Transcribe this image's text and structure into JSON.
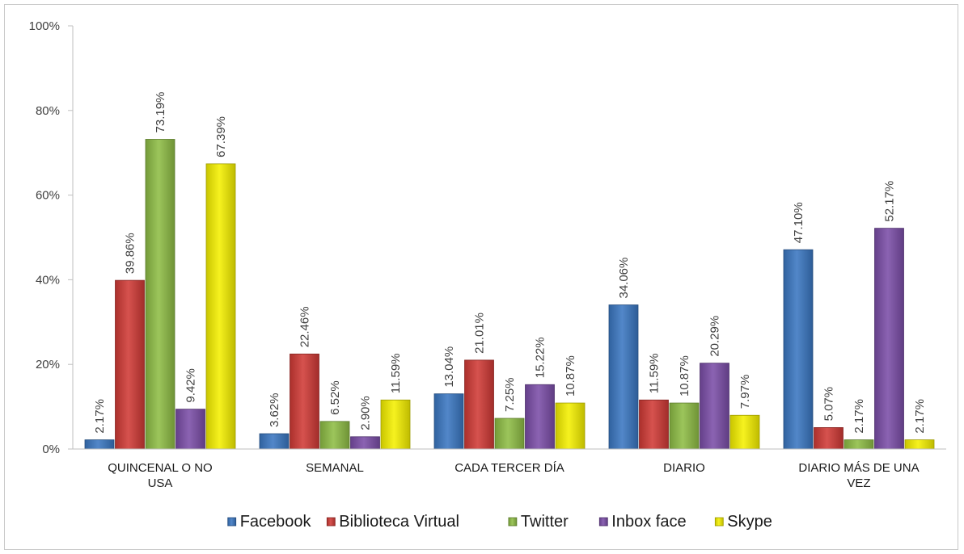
{
  "chart_data": {
    "type": "bar",
    "title": "",
    "xlabel": "",
    "ylabel": "",
    "ylim": [
      0,
      100
    ],
    "y_ticks": [
      "0%",
      "20%",
      "40%",
      "60%",
      "80%",
      "100%"
    ],
    "y_tick_values": [
      0,
      20,
      40,
      60,
      80,
      100
    ],
    "grid": false,
    "legend_position": "bottom",
    "categories": [
      [
        "QUINCENAL O NO",
        "USA"
      ],
      [
        "SEMANAL"
      ],
      [
        "CADA TERCER DÍA"
      ],
      [
        "DIARIO"
      ],
      [
        "DIARIO MÁS DE UNA",
        "VEZ"
      ]
    ],
    "series": [
      {
        "name": "Facebook",
        "color": "#3a77c2",
        "values": [
          2.17,
          3.62,
          13.04,
          34.06,
          47.1
        ],
        "labels": [
          "2.17%",
          "3.62%",
          "13.04%",
          "34.06%",
          "47.10%"
        ]
      },
      {
        "name": "Biblioteca Virtual",
        "color": "#d03a36",
        "values": [
          39.86,
          22.46,
          21.01,
          11.59,
          5.07
        ],
        "labels": [
          "39.86%",
          "22.46%",
          "21.01%",
          "11.59%",
          "5.07%"
        ]
      },
      {
        "name": "Twitter",
        "color": "#8ebd45",
        "values": [
          73.19,
          6.52,
          7.25,
          10.87,
          2.17
        ],
        "labels": [
          "73.19%",
          "6.52%",
          "7.25%",
          "10.87%",
          "2.17%"
        ]
      },
      {
        "name": "Inbox face",
        "color": "#7b4ea8",
        "values": [
          9.42,
          2.9,
          15.22,
          20.29,
          52.17
        ],
        "labels": [
          "9.42%",
          "2.90%",
          "15.22%",
          "20.29%",
          "52.17%"
        ]
      },
      {
        "name": "Skype",
        "color": "#f5f000",
        "values": [
          67.39,
          11.59,
          10.87,
          7.97,
          2.17
        ],
        "labels": [
          "67.39%",
          "11.59%",
          "10.87%",
          "7.97%",
          "2.17%"
        ]
      }
    ]
  }
}
